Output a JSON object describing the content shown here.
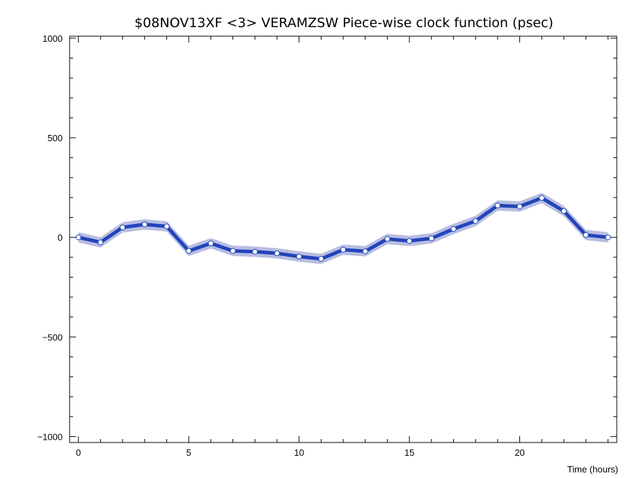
{
  "chart_data": {
    "type": "line",
    "title": "$08NOV13XF <3>  VERAMZSW  Piece-wise clock function (psec)",
    "xlabel": "Time (hours)",
    "ylabel": "",
    "xlim": [
      -0.4,
      24.4
    ],
    "ylim": [
      -1030,
      1010
    ],
    "x_ticks": [
      0,
      5,
      10,
      15,
      20
    ],
    "x_tick_labels": [
      "0",
      "5",
      "10",
      "15",
      "20"
    ],
    "y_ticks": [
      1000,
      500,
      0,
      -500,
      -1000
    ],
    "y_tick_labels": [
      "1000",
      "500",
      "0",
      "−500",
      "−1000"
    ],
    "grid": false,
    "x": [
      0,
      1,
      2,
      3,
      4,
      5,
      6,
      7,
      8,
      9,
      10,
      11,
      12,
      13,
      14,
      15,
      16,
      17,
      18,
      19,
      20,
      21,
      22,
      23,
      24
    ],
    "series": [
      {
        "values": [
          0,
          -25,
          50,
          65,
          55,
          -68,
          -30,
          -68,
          -72,
          -80,
          -96,
          -108,
          -62,
          -70,
          -8,
          -18,
          -5,
          42,
          82,
          160,
          155,
          198,
          132,
          12,
          0
        ],
        "band": 26,
        "color": "#2244bb",
        "band_color": "#b8bde0",
        "marker_fill": "#ffffff",
        "marker_edge": "#2244bb"
      }
    ]
  }
}
